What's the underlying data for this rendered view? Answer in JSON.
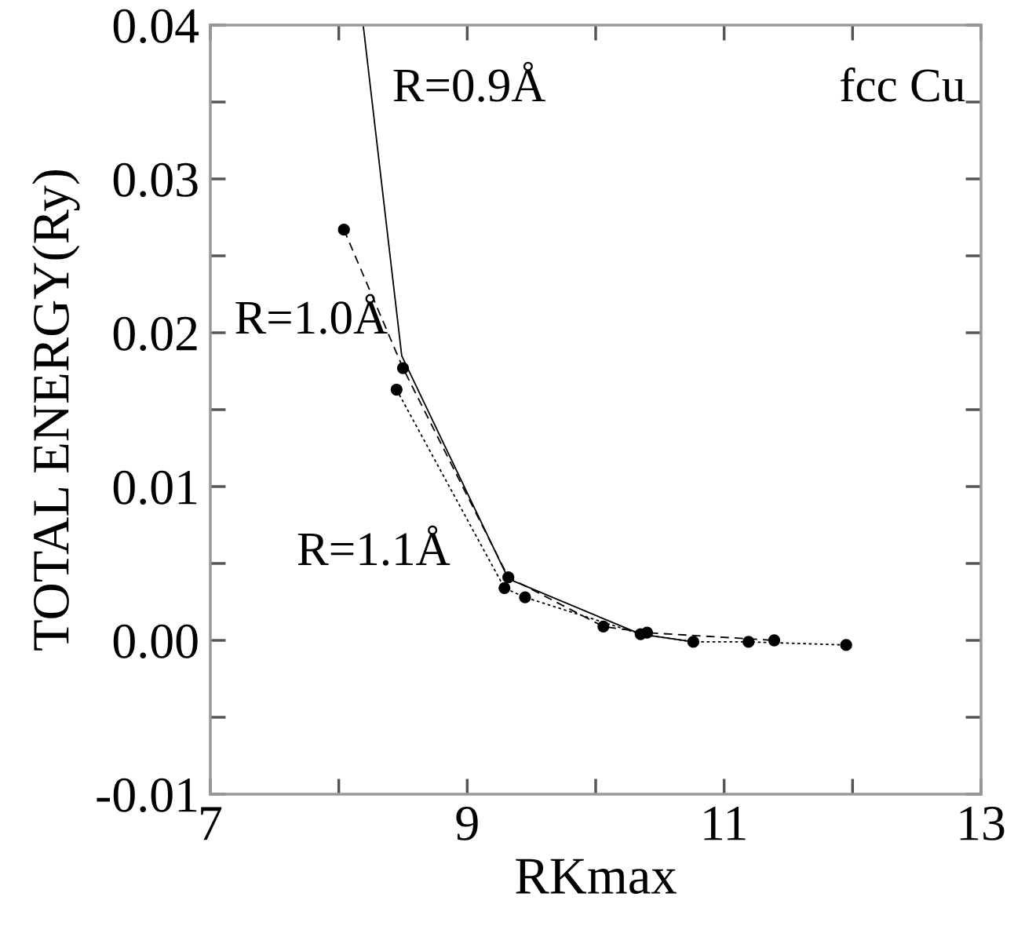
{
  "chart_data": {
    "type": "line",
    "xlabel": "RKmax",
    "ylabel": "TOTAL ENERGY(Ry)",
    "xlim": [
      7,
      13
    ],
    "ylim": [
      -0.01,
      0.04
    ],
    "xticks": [
      7,
      9,
      11,
      13
    ],
    "yticks": [
      {
        "value": -0.01,
        "label": "-0.01"
      },
      {
        "value": 0.0,
        "label": "0.00"
      },
      {
        "value": 0.01,
        "label": "0.01"
      },
      {
        "value": 0.02,
        "label": "0.02"
      },
      {
        "value": 0.03,
        "label": "0.03"
      },
      {
        "value": 0.04,
        "label": "0.04"
      }
    ],
    "grid": false,
    "legend": false,
    "series": [
      {
        "color": "#000000",
        "line_style": "solid",
        "marker": "none",
        "x": [
          8.19,
          8.49,
          9.32,
          10.35,
          10.76
        ],
        "values": [
          0.04,
          0.0185,
          0.004,
          0.0004,
          -0.0001
        ]
      },
      {
        "color": "#000000",
        "line_style": "dashed",
        "marker": "circle",
        "x": [
          8.04,
          8.5,
          9.32,
          10.06,
          10.4,
          11.39
        ],
        "values": [
          0.0267,
          0.0177,
          0.0041,
          0.0009,
          0.0005,
          0.0
        ]
      },
      {
        "color": "#000000",
        "line_style": "dotted",
        "marker": "circle",
        "x": [
          8.45,
          9.29,
          9.45,
          10.35,
          10.76,
          11.19,
          11.95
        ],
        "values": [
          0.0163,
          0.0034,
          0.0028,
          0.0004,
          -0.0001,
          -0.0001,
          -0.0003
        ]
      }
    ],
    "annotations": [
      "R=0.9Å",
      "R=1.0Å",
      "R=1.1Å",
      "fcc Cu"
    ]
  }
}
